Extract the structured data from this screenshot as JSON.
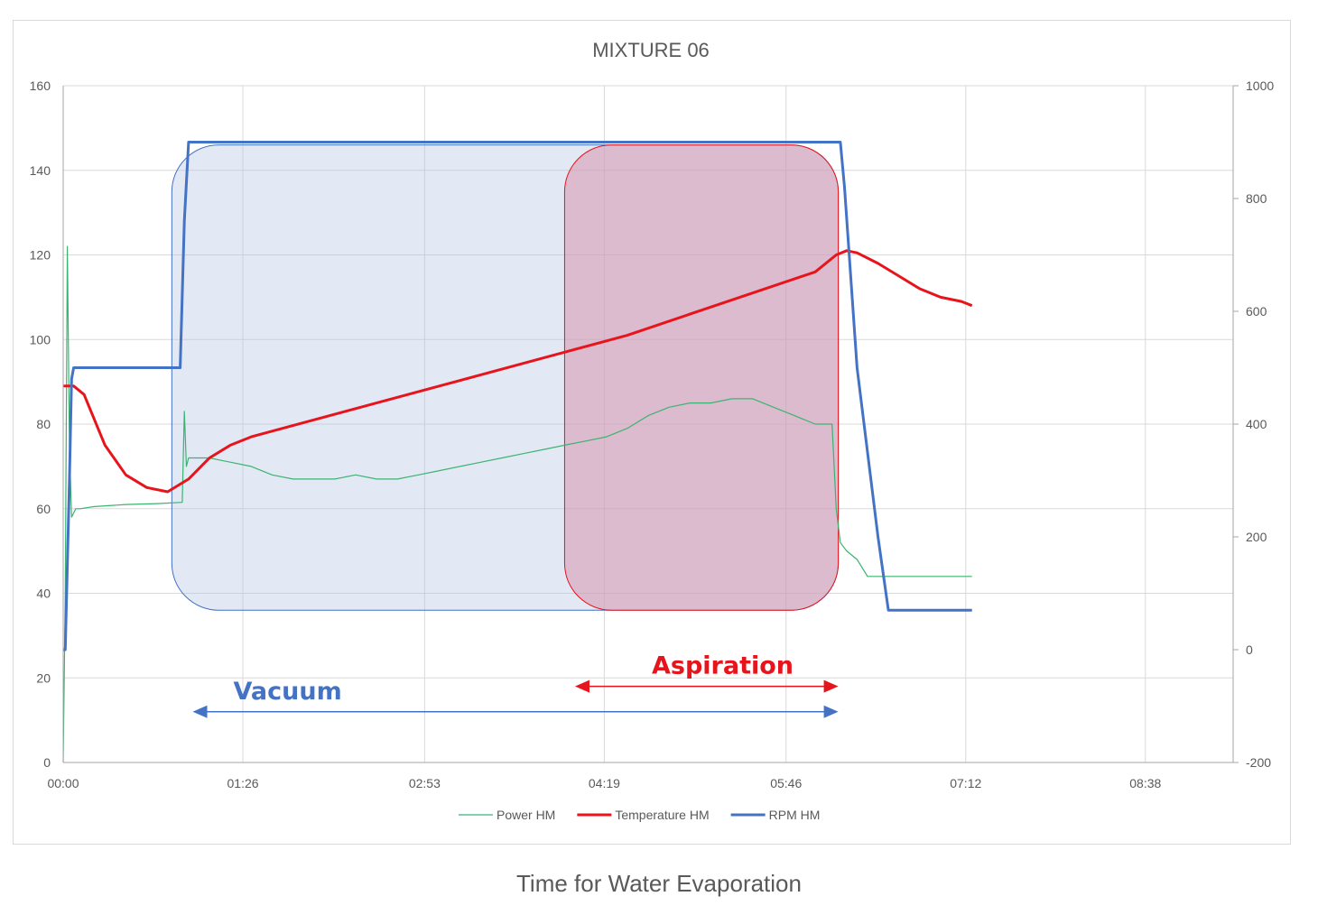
{
  "caption": "Time for Water Evaporation",
  "chart_data": {
    "type": "line",
    "title": "MIXTURE 06",
    "xlabel": "",
    "ylabel": "",
    "x_unit": "mm:ss",
    "xlim": [
      "00:00",
      "09:20"
    ],
    "x_ticks": [
      "00:00",
      "01:26",
      "02:53",
      "04:19",
      "05:46",
      "07:12",
      "08:38"
    ],
    "ylim": [
      0,
      160
    ],
    "y_ticks": [
      0,
      20,
      40,
      60,
      80,
      100,
      120,
      140,
      160
    ],
    "y2lim": [
      -200,
      1000
    ],
    "y2_ticks": [
      -200,
      0,
      200,
      400,
      600,
      800,
      1000
    ],
    "grid": true,
    "legend_position": "bottom",
    "colors": {
      "power": "#3cb371",
      "temperature": "#e8141c",
      "rpm": "#4472c4",
      "vacuum": "#4472c4",
      "aspiration": "#e8141c"
    },
    "series": [
      {
        "name": "Power HM",
        "axis": "left",
        "x": [
          "00:00",
          "00:01",
          "00:02",
          "00:03",
          "00:04",
          "00:06",
          "00:08",
          "00:15",
          "00:30",
          "00:45",
          "00:57",
          "00:58",
          "00:59",
          "01:00",
          "01:10",
          "01:20",
          "01:30",
          "01:40",
          "01:50",
          "02:00",
          "02:10",
          "02:20",
          "02:30",
          "02:40",
          "02:50",
          "03:00",
          "03:10",
          "03:20",
          "03:30",
          "03:40",
          "03:50",
          "04:00",
          "04:10",
          "04:20",
          "04:30",
          "04:40",
          "04:50",
          "05:00",
          "05:10",
          "05:20",
          "05:30",
          "05:40",
          "05:50",
          "06:00",
          "06:08",
          "06:10",
          "06:12",
          "06:15",
          "06:20",
          "06:25",
          "07:00",
          "07:15"
        ],
        "values": [
          0,
          40,
          122,
          75,
          58,
          60,
          60,
          60.5,
          61,
          61.2,
          61.5,
          83,
          70,
          72,
          72,
          71,
          70,
          68,
          67,
          67,
          67,
          68,
          67,
          67,
          68,
          69,
          70,
          71,
          72,
          73,
          74,
          75,
          76,
          77,
          79,
          82,
          84,
          85,
          85,
          86,
          86,
          84,
          82,
          80,
          80,
          60,
          52,
          50,
          48,
          44,
          44,
          44
        ]
      },
      {
        "name": "Temperature HM",
        "axis": "left",
        "x": [
          "00:00",
          "00:05",
          "00:10",
          "00:20",
          "00:30",
          "00:40",
          "00:50",
          "01:00",
          "01:10",
          "01:20",
          "01:30",
          "02:00",
          "02:30",
          "03:00",
          "03:30",
          "04:00",
          "04:30",
          "05:00",
          "05:30",
          "06:00",
          "06:10",
          "06:15",
          "06:20",
          "06:30",
          "06:40",
          "06:50",
          "07:00",
          "07:10",
          "07:15"
        ],
        "values": [
          89,
          89,
          87,
          75,
          68,
          65,
          64,
          67,
          72,
          75,
          77,
          81,
          85,
          89,
          93,
          97,
          101,
          106,
          111,
          116,
          120,
          121,
          120.5,
          118,
          115,
          112,
          110,
          109,
          108
        ]
      },
      {
        "name": "RPM HM",
        "axis": "right",
        "x": [
          "00:00",
          "00:01",
          "00:03",
          "00:04",
          "00:05",
          "00:10",
          "00:20",
          "00:30",
          "00:40",
          "00:56",
          "00:58",
          "01:00",
          "01:30",
          "02:00",
          "03:00",
          "04:00",
          "05:00",
          "06:00",
          "06:10",
          "06:12",
          "06:14",
          "06:20",
          "06:30",
          "06:35",
          "06:40",
          "06:50",
          "07:00",
          "07:10",
          "07:15"
        ],
        "values": [
          0,
          0,
          300,
          480,
          500,
          500,
          500,
          500,
          500,
          500,
          760,
          900,
          900,
          900,
          900,
          900,
          900,
          900,
          900,
          900,
          820,
          500,
          200,
          70,
          70,
          70,
          70,
          70,
          70
        ]
      }
    ],
    "annotations": [
      {
        "text": "Vacuum",
        "x_start": "01:02",
        "x_end": "06:11",
        "y": 12
      },
      {
        "text": "Aspiration",
        "x_start": "04:05",
        "x_end": "06:11",
        "y": 18
      }
    ],
    "shaded_regions": [
      {
        "name": "Vacuum",
        "x_start": "00:52",
        "x_end": "06:11",
        "y_start": 36,
        "y_end": 146
      },
      {
        "name": "Aspiration",
        "x_start": "04:00",
        "x_end": "06:11",
        "y_start": 36,
        "y_end": 146
      }
    ]
  }
}
